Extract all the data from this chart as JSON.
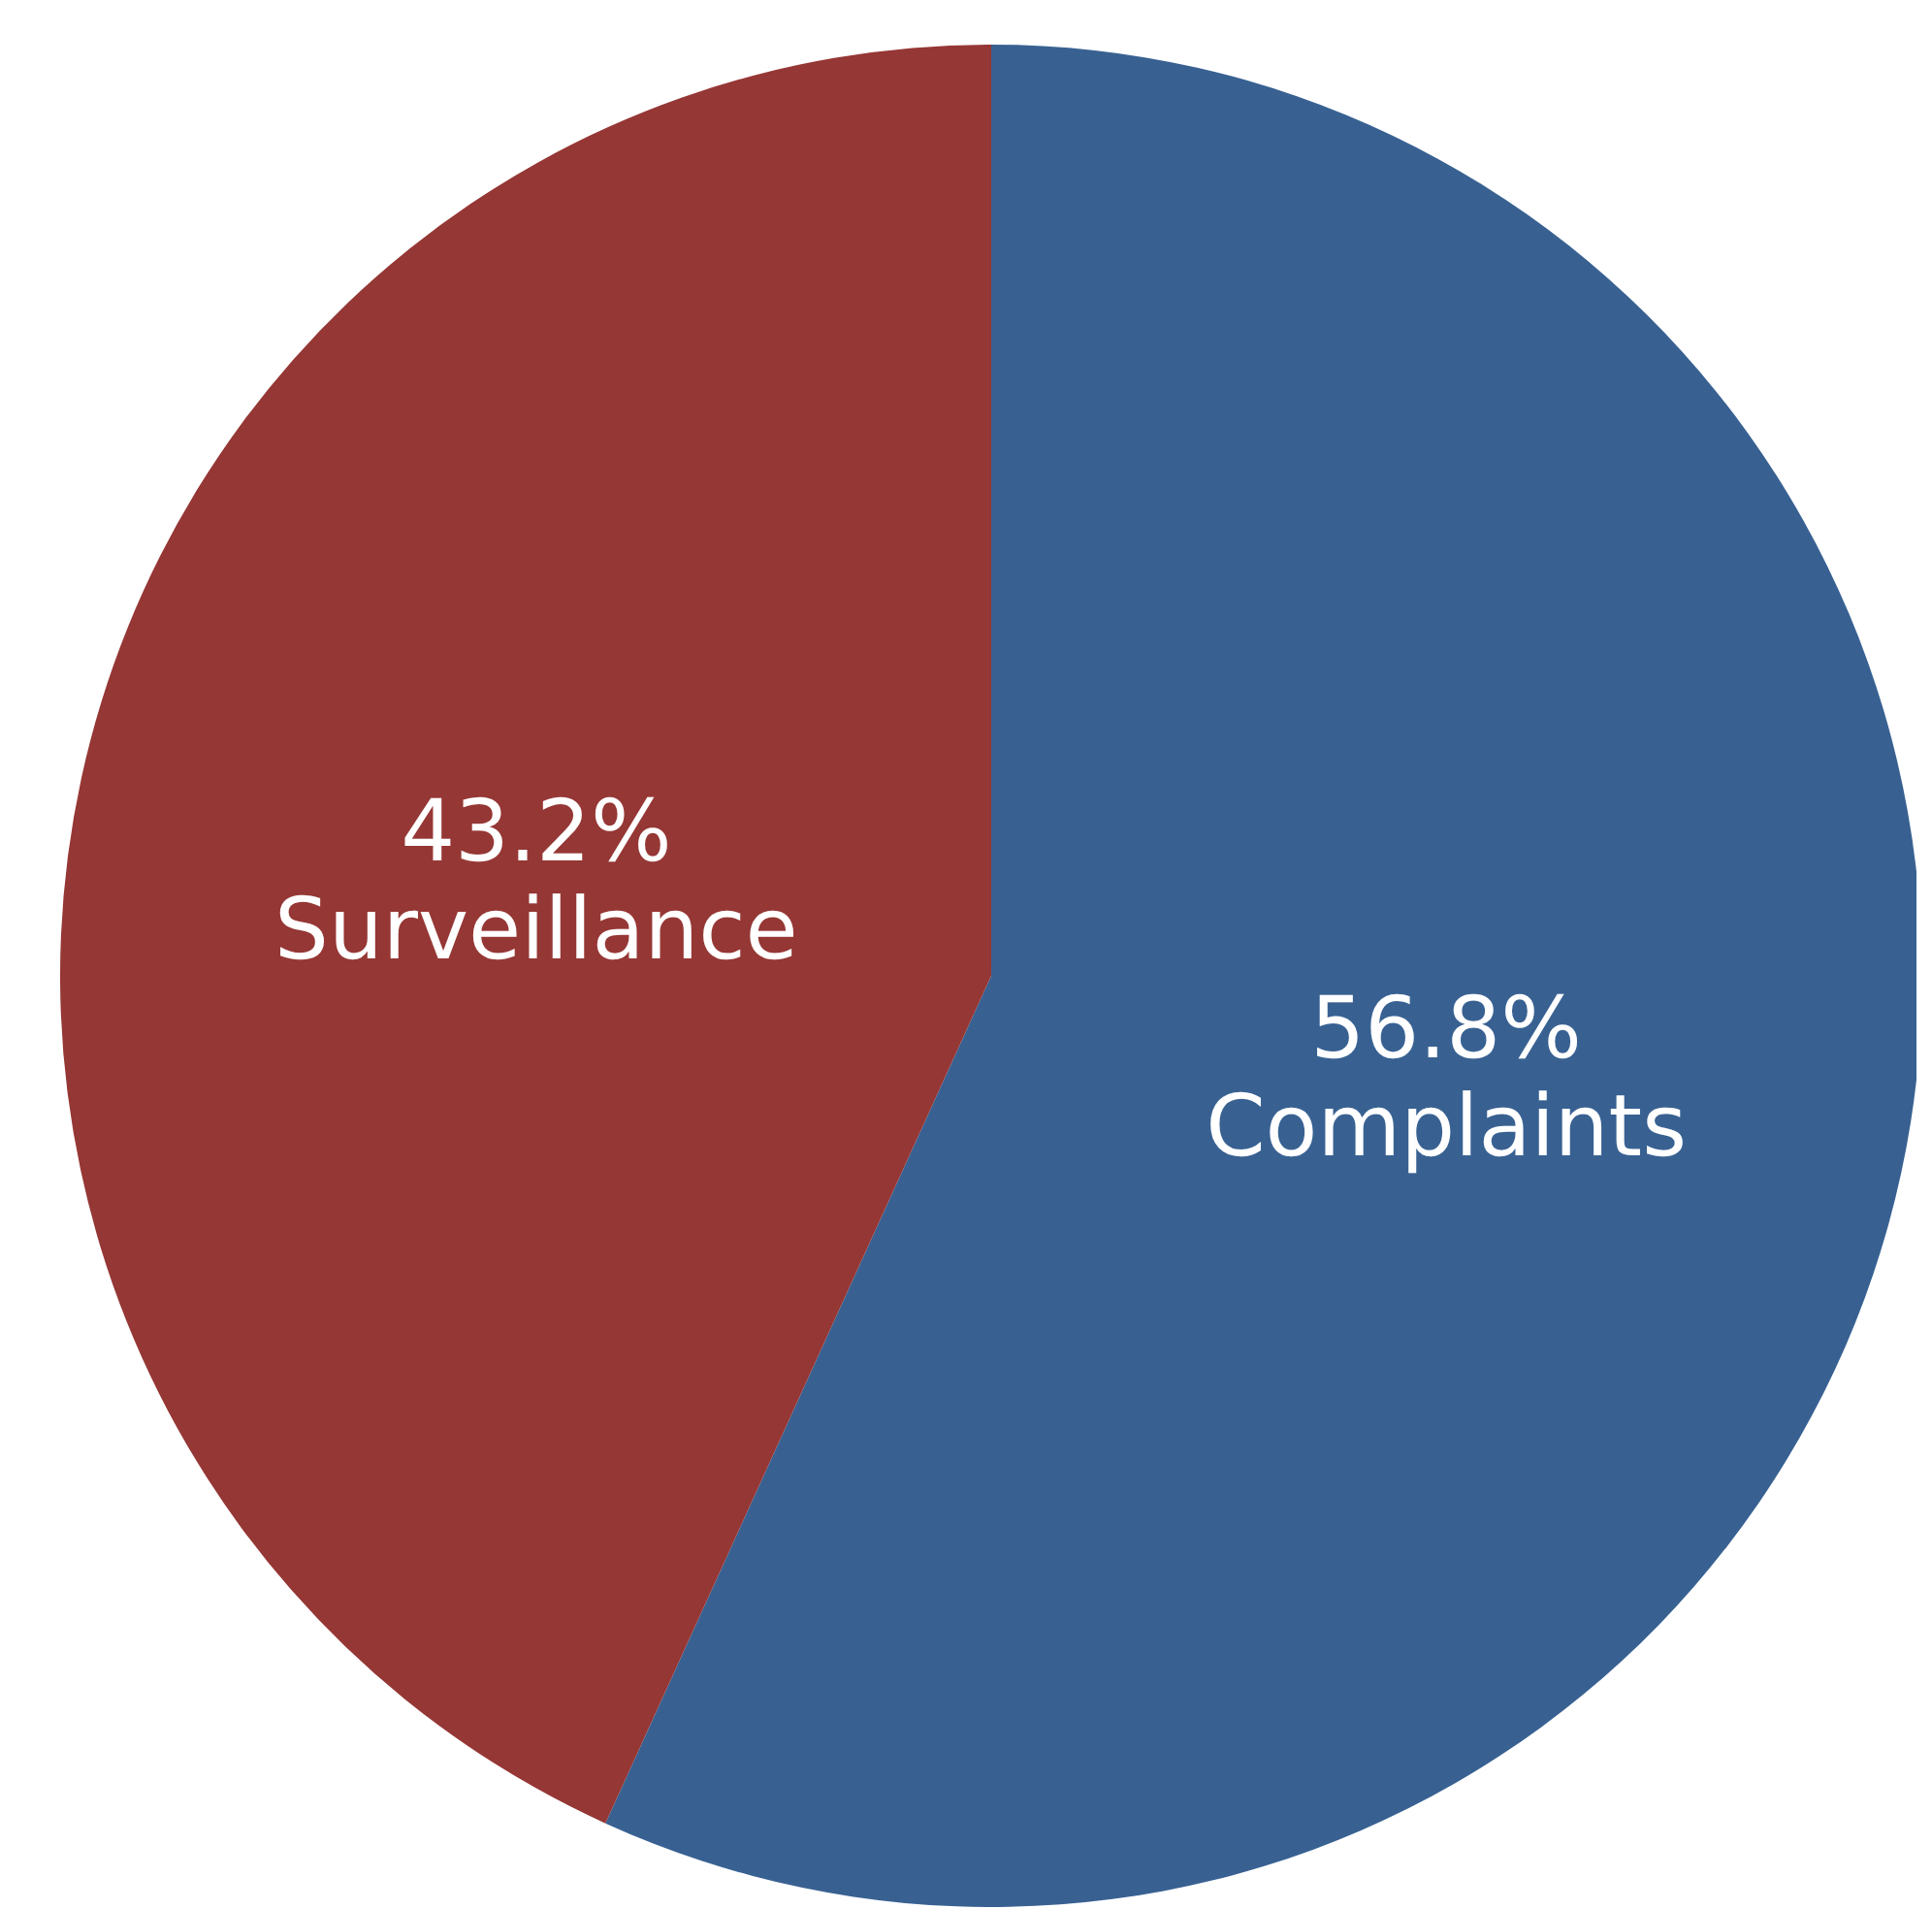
{
  "chart_data": {
    "type": "pie",
    "categories": [
      "Complaints",
      "Surveillance"
    ],
    "values": [
      56.8,
      43.2
    ],
    "colors": [
      "#386192",
      "#953735"
    ],
    "value_labels": [
      "56.8%",
      "43.2%"
    ]
  }
}
